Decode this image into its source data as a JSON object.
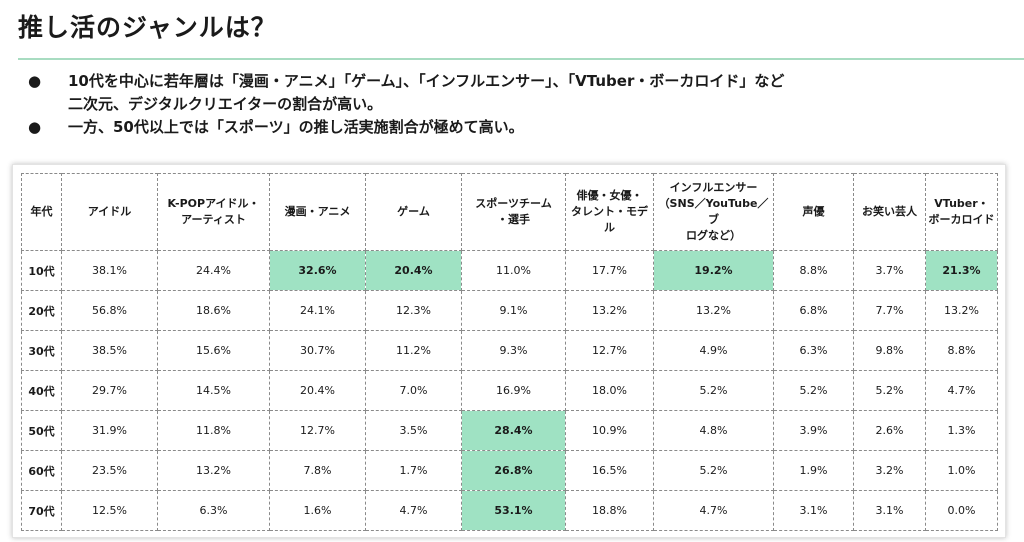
{
  "title": "推し活のジャンルは？",
  "bullets": [
    {
      "marker": "●",
      "text": "10代を中心に若年層は「漫画・アニメ」「ゲーム」、「インフルエンサー」、「VTuber・ボーカロイド」など\n二次元、デジタルクリエイターの割合が高い。"
    },
    {
      "marker": "●",
      "text": "一方、50代以上では「スポーツ」の推し活実施割合が極めて高い。"
    }
  ],
  "colors": {
    "highlight": "#9fe2c3",
    "rule": "#a8dcc1"
  },
  "table": {
    "headers": [
      "年代",
      "アイドル",
      "K-POPアイドル・\nアーティスト",
      "漫画・アニメ",
      "ゲーム",
      "スポーツチーム\n・選手",
      "俳優・女優・\nタレント・モデル",
      "インフルエンサー\n（SNS／YouTube／ブ\nログなど）",
      "声優",
      "お笑い芸人",
      "VTuber・\nボーカロイド"
    ],
    "rows": [
      {
        "age": "10代",
        "cells": [
          {
            "v": "38.1%",
            "hi": false
          },
          {
            "v": "24.4%",
            "hi": false
          },
          {
            "v": "32.6%",
            "hi": true
          },
          {
            "v": "20.4%",
            "hi": true
          },
          {
            "v": "11.0%",
            "hi": false
          },
          {
            "v": "17.7%",
            "hi": false
          },
          {
            "v": "19.2%",
            "hi": true
          },
          {
            "v": "8.8%",
            "hi": false
          },
          {
            "v": "3.7%",
            "hi": false
          },
          {
            "v": "21.3%",
            "hi": true
          }
        ]
      },
      {
        "age": "20代",
        "cells": [
          {
            "v": "56.8%",
            "hi": false
          },
          {
            "v": "18.6%",
            "hi": false
          },
          {
            "v": "24.1%",
            "hi": false
          },
          {
            "v": "12.3%",
            "hi": false
          },
          {
            "v": "9.1%",
            "hi": false
          },
          {
            "v": "13.2%",
            "hi": false
          },
          {
            "v": "13.2%",
            "hi": false
          },
          {
            "v": "6.8%",
            "hi": false
          },
          {
            "v": "7.7%",
            "hi": false
          },
          {
            "v": "13.2%",
            "hi": false
          }
        ]
      },
      {
        "age": "30代",
        "cells": [
          {
            "v": "38.5%",
            "hi": false
          },
          {
            "v": "15.6%",
            "hi": false
          },
          {
            "v": "30.7%",
            "hi": false
          },
          {
            "v": "11.2%",
            "hi": false
          },
          {
            "v": "9.3%",
            "hi": false
          },
          {
            "v": "12.7%",
            "hi": false
          },
          {
            "v": "4.9%",
            "hi": false
          },
          {
            "v": "6.3%",
            "hi": false
          },
          {
            "v": "9.8%",
            "hi": false
          },
          {
            "v": "8.8%",
            "hi": false
          }
        ]
      },
      {
        "age": "40代",
        "cells": [
          {
            "v": "29.7%",
            "hi": false
          },
          {
            "v": "14.5%",
            "hi": false
          },
          {
            "v": "20.4%",
            "hi": false
          },
          {
            "v": "7.0%",
            "hi": false
          },
          {
            "v": "16.9%",
            "hi": false
          },
          {
            "v": "18.0%",
            "hi": false
          },
          {
            "v": "5.2%",
            "hi": false
          },
          {
            "v": "5.2%",
            "hi": false
          },
          {
            "v": "5.2%",
            "hi": false
          },
          {
            "v": "4.7%",
            "hi": false
          }
        ]
      },
      {
        "age": "50代",
        "cells": [
          {
            "v": "31.9%",
            "hi": false
          },
          {
            "v": "11.8%",
            "hi": false
          },
          {
            "v": "12.7%",
            "hi": false
          },
          {
            "v": "3.5%",
            "hi": false
          },
          {
            "v": "28.4%",
            "hi": true
          },
          {
            "v": "10.9%",
            "hi": false
          },
          {
            "v": "4.8%",
            "hi": false
          },
          {
            "v": "3.9%",
            "hi": false
          },
          {
            "v": "2.6%",
            "hi": false
          },
          {
            "v": "1.3%",
            "hi": false
          }
        ]
      },
      {
        "age": "60代",
        "cells": [
          {
            "v": "23.5%",
            "hi": false
          },
          {
            "v": "13.2%",
            "hi": false
          },
          {
            "v": "7.8%",
            "hi": false
          },
          {
            "v": "1.7%",
            "hi": false
          },
          {
            "v": "26.8%",
            "hi": true
          },
          {
            "v": "16.5%",
            "hi": false
          },
          {
            "v": "5.2%",
            "hi": false
          },
          {
            "v": "1.9%",
            "hi": false
          },
          {
            "v": "3.2%",
            "hi": false
          },
          {
            "v": "1.0%",
            "hi": false
          }
        ]
      },
      {
        "age": "70代",
        "cells": [
          {
            "v": "12.5%",
            "hi": false
          },
          {
            "v": "6.3%",
            "hi": false
          },
          {
            "v": "1.6%",
            "hi": false
          },
          {
            "v": "4.7%",
            "hi": false
          },
          {
            "v": "53.1%",
            "hi": true
          },
          {
            "v": "18.8%",
            "hi": false
          },
          {
            "v": "4.7%",
            "hi": false
          },
          {
            "v": "3.1%",
            "hi": false
          },
          {
            "v": "3.1%",
            "hi": false
          },
          {
            "v": "0.0%",
            "hi": false
          }
        ]
      }
    ]
  }
}
